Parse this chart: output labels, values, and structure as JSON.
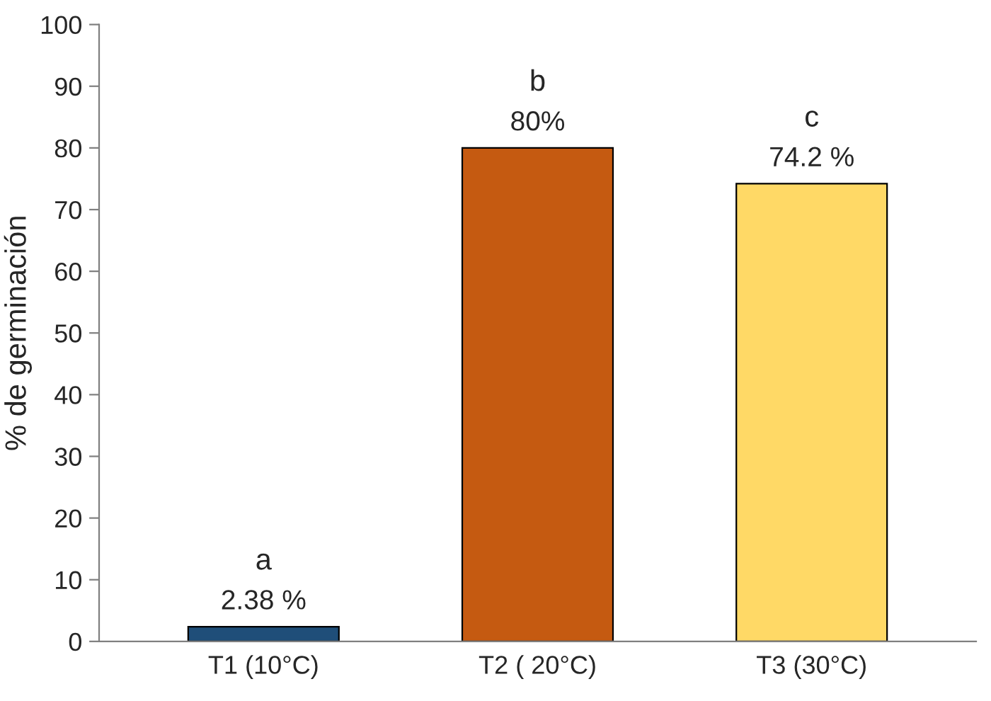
{
  "chart_data": {
    "type": "bar",
    "ylabel": "% de germinación",
    "categories": [
      "T1 (10°C)",
      "T2 ( 20°C)",
      "T3 (30°C)"
    ],
    "values": [
      2.38,
      80,
      74.2
    ],
    "colors": [
      "#1f4e79",
      "#c55a11",
      "#ffd966"
    ],
    "value_labels": [
      "2.38 %",
      "80%",
      "74.2 %"
    ],
    "annotations": [
      "a",
      "b",
      "c"
    ],
    "ylim": [
      0,
      100
    ],
    "yticks": [
      0,
      10,
      20,
      30,
      40,
      50,
      60,
      70,
      80,
      90,
      100
    ],
    "grid": false,
    "legend": false
  }
}
